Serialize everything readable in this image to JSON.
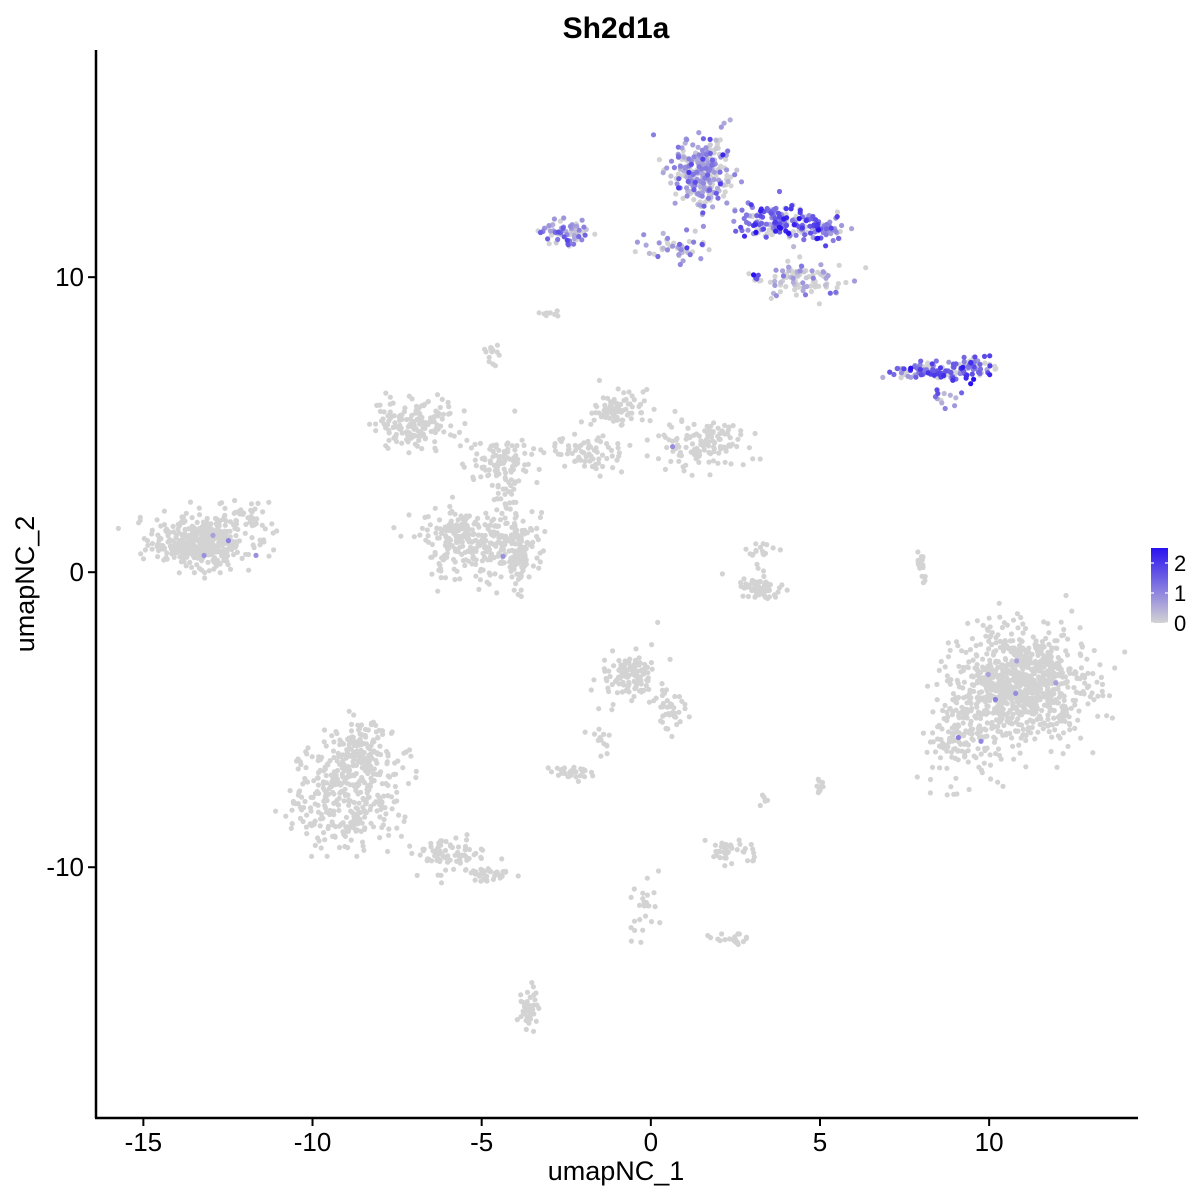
{
  "chart_data": {
    "type": "scatter",
    "title": "Sh2d1a",
    "xlabel": "umapNC_1",
    "ylabel": "umapNC_2",
    "xlim": [
      -16.4,
      14.4
    ],
    "ylim": [
      -18.5,
      17.7
    ],
    "x_ticks": [
      -15,
      -10,
      -5,
      0,
      5,
      10
    ],
    "x_tick_labels": [
      "-15",
      "-10",
      "-5",
      "0",
      "5",
      "10"
    ],
    "y_ticks": [
      -10,
      0,
      10
    ],
    "y_tick_labels": [
      "-10",
      "0",
      "10"
    ],
    "grid": false,
    "legend": {
      "placement": "right",
      "type": "colorbar",
      "breaks": [
        0,
        1,
        2
      ],
      "break_labels": [
        "0",
        "1",
        "2"
      ],
      "range": [
        0,
        2.5
      ],
      "low_color": "#d3d3d3",
      "high_color": "#2a12f0"
    },
    "point_color_low": "#d3d3d3",
    "point_color_high": "#2a12f0",
    "clusters": [
      {
        "center": [
          -13.3,
          1.0
        ],
        "spread": [
          1.0,
          0.6
        ],
        "n": 420,
        "expression": 0
      },
      {
        "center": [
          -12.0,
          1.8
        ],
        "spread": [
          0.5,
          0.4
        ],
        "n": 40,
        "expression": 0
      },
      {
        "center": [
          -7.0,
          5.0
        ],
        "spread": [
          0.9,
          0.6
        ],
        "n": 160,
        "expression": 0
      },
      {
        "center": [
          -4.5,
          3.8
        ],
        "spread": [
          0.8,
          0.5
        ],
        "n": 80,
        "expression": 0
      },
      {
        "center": [
          -5.5,
          1.0
        ],
        "spread": [
          0.9,
          0.8
        ],
        "n": 230,
        "expression": 0
      },
      {
        "center": [
          -3.9,
          0.8
        ],
        "spread": [
          0.5,
          0.9
        ],
        "n": 140,
        "expression": 0
      },
      {
        "center": [
          -4.3,
          2.6
        ],
        "spread": [
          0.3,
          1.2
        ],
        "n": 60,
        "expression": 0
      },
      {
        "center": [
          -1.8,
          4.0
        ],
        "spread": [
          0.8,
          0.4
        ],
        "n": 70,
        "expression": 0
      },
      {
        "center": [
          -1.0,
          5.5
        ],
        "spread": [
          0.5,
          0.5
        ],
        "n": 80,
        "expression": 0
      },
      {
        "center": [
          1.5,
          4.4
        ],
        "spread": [
          0.9,
          0.6
        ],
        "n": 130,
        "expression": 0
      },
      {
        "center": [
          -4.7,
          7.4
        ],
        "spread": [
          0.2,
          0.3
        ],
        "n": 14,
        "expression": 0
      },
      {
        "center": [
          -3.0,
          8.8
        ],
        "spread": [
          0.2,
          0.1
        ],
        "n": 10,
        "expression": 0
      },
      {
        "center": [
          3.3,
          -0.5
        ],
        "spread": [
          0.5,
          0.3
        ],
        "n": 60,
        "expression": 0
      },
      {
        "center": [
          3.3,
          0.7
        ],
        "spread": [
          0.3,
          0.3
        ],
        "n": 18,
        "expression": 0
      },
      {
        "center": [
          8.0,
          0.2
        ],
        "spread": [
          0.1,
          0.6
        ],
        "n": 20,
        "expression": 0
      },
      {
        "center": [
          11.0,
          -3.8
        ],
        "spread": [
          1.3,
          1.3
        ],
        "n": 900,
        "expression": 0
      },
      {
        "center": [
          9.2,
          -5.5
        ],
        "spread": [
          0.9,
          1.2
        ],
        "n": 150,
        "expression": 0
      },
      {
        "center": [
          -0.6,
          -3.5
        ],
        "spread": [
          0.6,
          0.6
        ],
        "n": 120,
        "expression": 0
      },
      {
        "center": [
          0.6,
          -4.8
        ],
        "spread": [
          0.3,
          0.6
        ],
        "n": 35,
        "expression": 0
      },
      {
        "center": [
          -2.4,
          -6.8
        ],
        "spread": [
          0.4,
          0.2
        ],
        "n": 35,
        "expression": 0
      },
      {
        "center": [
          -1.5,
          -5.8
        ],
        "spread": [
          0.3,
          0.4
        ],
        "n": 15,
        "expression": 0
      },
      {
        "center": [
          2.4,
          -9.5
        ],
        "spread": [
          0.5,
          0.3
        ],
        "n": 40,
        "expression": 0
      },
      {
        "center": [
          2.4,
          -12.4
        ],
        "spread": [
          0.4,
          0.15
        ],
        "n": 20,
        "expression": 0
      },
      {
        "center": [
          -0.2,
          -11.5
        ],
        "spread": [
          0.3,
          0.9
        ],
        "n": 25,
        "expression": 0
      },
      {
        "center": [
          -3.6,
          -14.8
        ],
        "spread": [
          0.2,
          0.6
        ],
        "n": 40,
        "expression": 0
      },
      {
        "center": [
          -9.0,
          -7.5
        ],
        "spread": [
          1.1,
          1.3
        ],
        "n": 380,
        "expression": 0
      },
      {
        "center": [
          -8.5,
          -6.0
        ],
        "spread": [
          0.6,
          0.7
        ],
        "n": 90,
        "expression": 0
      },
      {
        "center": [
          -6.0,
          -9.6
        ],
        "spread": [
          0.8,
          0.4
        ],
        "n": 80,
        "expression": 0
      },
      {
        "center": [
          -4.8,
          -10.2
        ],
        "spread": [
          0.5,
          0.2
        ],
        "n": 40,
        "expression": 0
      },
      {
        "center": [
          5.0,
          -7.4
        ],
        "spread": [
          0.1,
          0.3
        ],
        "n": 10,
        "expression": 0
      },
      {
        "center": [
          3.3,
          -7.7
        ],
        "spread": [
          0.1,
          0.2
        ],
        "n": 5,
        "expression": 0
      },
      {
        "center": [
          1.5,
          13.5
        ],
        "spread": [
          0.6,
          0.9
        ],
        "n": 280,
        "expression": 0.6
      },
      {
        "center": [
          3.6,
          11.9
        ],
        "spread": [
          0.8,
          0.4
        ],
        "n": 140,
        "expression": 1.3
      },
      {
        "center": [
          4.9,
          11.7
        ],
        "spread": [
          0.6,
          0.3
        ],
        "n": 70,
        "expression": 1.2
      },
      {
        "center": [
          -2.5,
          11.5
        ],
        "spread": [
          0.5,
          0.35
        ],
        "n": 65,
        "expression": 0.8
      },
      {
        "center": [
          0.7,
          11.0
        ],
        "spread": [
          0.7,
          0.3
        ],
        "n": 45,
        "expression": 0.7
      },
      {
        "center": [
          4.5,
          9.9
        ],
        "spread": [
          0.8,
          0.5
        ],
        "n": 90,
        "expression": 0.3
      },
      {
        "center": [
          8.3,
          6.8
        ],
        "spread": [
          0.9,
          0.2
        ],
        "n": 110,
        "expression": 1.3
      },
      {
        "center": [
          9.5,
          6.9
        ],
        "spread": [
          0.5,
          0.25
        ],
        "n": 55,
        "expression": 1.5
      },
      {
        "center": [
          8.6,
          5.9
        ],
        "spread": [
          0.3,
          0.2
        ],
        "n": 12,
        "expression": 0.9
      },
      {
        "center": [
          3.1,
          10.0
        ],
        "spread": [
          0.2,
          0.15
        ],
        "n": 8,
        "expression": 2.3
      }
    ]
  }
}
